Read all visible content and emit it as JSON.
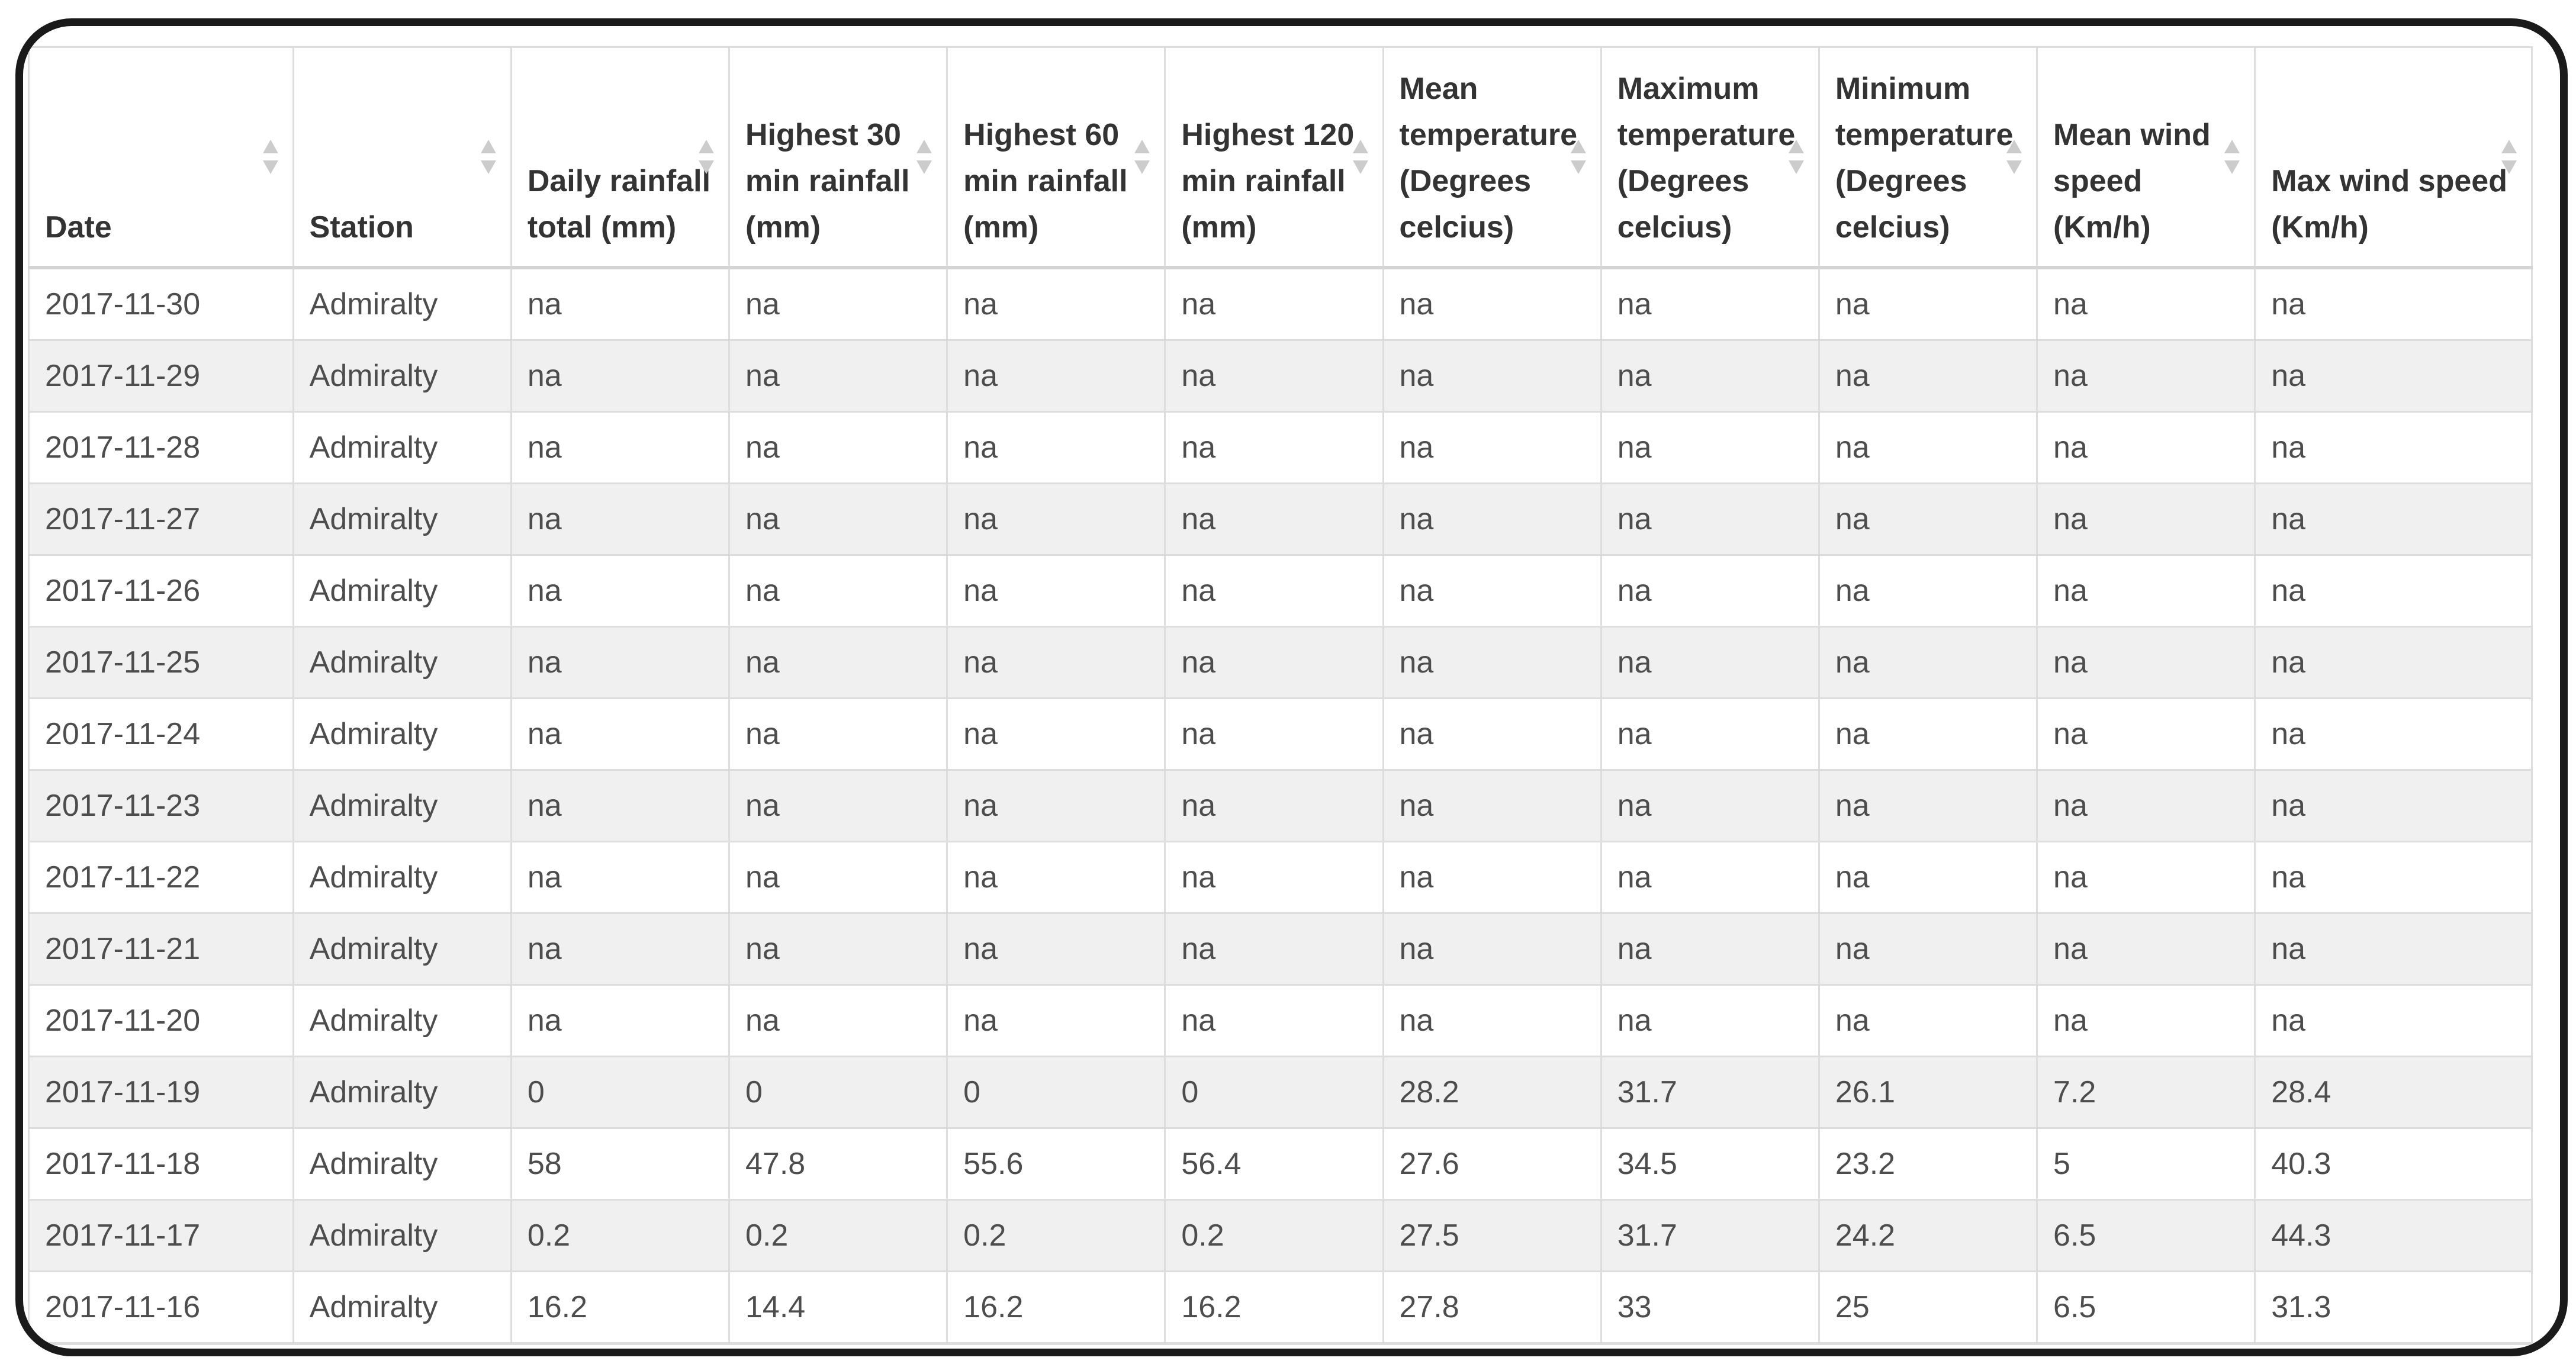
{
  "table": {
    "station_name": "Admiralty",
    "columns": [
      {
        "id": "date",
        "label": "Date",
        "sortable": true
      },
      {
        "id": "station",
        "label": "Station",
        "sortable": true
      },
      {
        "id": "daily-rainfall-total",
        "label": "Daily rainfall total (mm)",
        "sortable": true
      },
      {
        "id": "highest-30-min-rainfall",
        "label": "Highest 30 min rainfall (mm)",
        "sortable": true
      },
      {
        "id": "highest-60-min-rainfall",
        "label": "Highest 60 min rainfall (mm)",
        "sortable": true
      },
      {
        "id": "highest-120-min-rainfall",
        "label": "Highest 120 min rainfall (mm)",
        "sortable": true
      },
      {
        "id": "mean-temperature",
        "label": "Mean temperature (Degrees celcius)",
        "sortable": true
      },
      {
        "id": "maximum-temperature",
        "label": "Maximum temperature (Degrees celcius)",
        "sortable": true
      },
      {
        "id": "minimum-temperature",
        "label": "Minimum temperature (Degrees celcius)",
        "sortable": true
      },
      {
        "id": "mean-wind-speed",
        "label": "Mean wind speed (Km/h)",
        "sortable": true
      },
      {
        "id": "max-wind-speed",
        "label": "Max wind speed (Km/h)",
        "sortable": true
      }
    ],
    "rows": [
      [
        "2017-11-30",
        "Admiralty",
        "na",
        "na",
        "na",
        "na",
        "na",
        "na",
        "na",
        "na",
        "na"
      ],
      [
        "2017-11-29",
        "Admiralty",
        "na",
        "na",
        "na",
        "na",
        "na",
        "na",
        "na",
        "na",
        "na"
      ],
      [
        "2017-11-28",
        "Admiralty",
        "na",
        "na",
        "na",
        "na",
        "na",
        "na",
        "na",
        "na",
        "na"
      ],
      [
        "2017-11-27",
        "Admiralty",
        "na",
        "na",
        "na",
        "na",
        "na",
        "na",
        "na",
        "na",
        "na"
      ],
      [
        "2017-11-26",
        "Admiralty",
        "na",
        "na",
        "na",
        "na",
        "na",
        "na",
        "na",
        "na",
        "na"
      ],
      [
        "2017-11-25",
        "Admiralty",
        "na",
        "na",
        "na",
        "na",
        "na",
        "na",
        "na",
        "na",
        "na"
      ],
      [
        "2017-11-24",
        "Admiralty",
        "na",
        "na",
        "na",
        "na",
        "na",
        "na",
        "na",
        "na",
        "na"
      ],
      [
        "2017-11-23",
        "Admiralty",
        "na",
        "na",
        "na",
        "na",
        "na",
        "na",
        "na",
        "na",
        "na"
      ],
      [
        "2017-11-22",
        "Admiralty",
        "na",
        "na",
        "na",
        "na",
        "na",
        "na",
        "na",
        "na",
        "na"
      ],
      [
        "2017-11-21",
        "Admiralty",
        "na",
        "na",
        "na",
        "na",
        "na",
        "na",
        "na",
        "na",
        "na"
      ],
      [
        "2017-11-20",
        "Admiralty",
        "na",
        "na",
        "na",
        "na",
        "na",
        "na",
        "na",
        "na",
        "na"
      ],
      [
        "2017-11-19",
        "Admiralty",
        "0",
        "0",
        "0",
        "0",
        "28.2",
        "31.7",
        "26.1",
        "7.2",
        "28.4"
      ],
      [
        "2017-11-18",
        "Admiralty",
        "58",
        "47.8",
        "55.6",
        "56.4",
        "27.6",
        "34.5",
        "23.2",
        "5",
        "40.3"
      ],
      [
        "2017-11-17",
        "Admiralty",
        "0.2",
        "0.2",
        "0.2",
        "0.2",
        "27.5",
        "31.7",
        "24.2",
        "6.5",
        "44.3"
      ],
      [
        "2017-11-16",
        "Admiralty",
        "16.2",
        "14.4",
        "16.2",
        "16.2",
        "27.8",
        "33",
        "25",
        "6.5",
        "31.3"
      ]
    ]
  },
  "icons": {
    "sort": "sort-arrows-icon"
  },
  "colors": {
    "frame": "#1a1a1a",
    "border": "#dddddd",
    "stripe": "#f0f0f0",
    "header_text": "#333333",
    "body_text": "#4d4d4d",
    "sort_icon": "#cccccc"
  }
}
